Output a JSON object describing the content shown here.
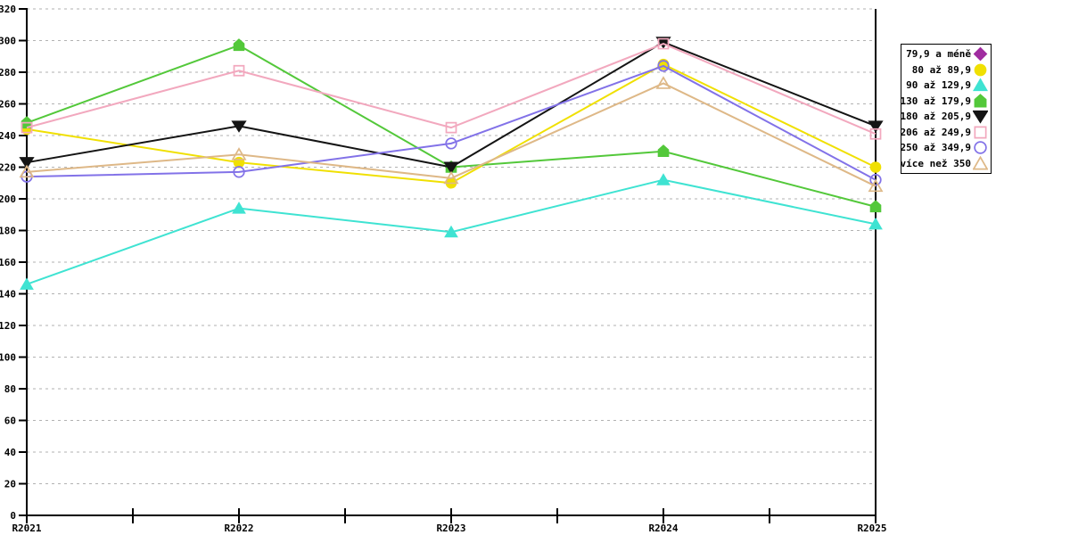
{
  "chart_data": {
    "type": "line",
    "title": "",
    "xlabel": "",
    "ylabel": "",
    "categories": [
      "R2021",
      "R2022",
      "R2023",
      "R2024",
      "R2025"
    ],
    "ylim": [
      0,
      320
    ],
    "ytick_step": 20,
    "grid": "dashed-horizontal",
    "grid_color": "#b2b2b2",
    "axis_color": "#000000",
    "background_color": "#ffffff",
    "legend_position": "right",
    "legend_border_color": "#000000",
    "series": [
      {
        "name": "79,9 a méně",
        "color": "#a02da0",
        "marker": "diamond",
        "marker_filled": true,
        "values": []
      },
      {
        "name": "80 až 89,9",
        "color": "#f0e002",
        "marker": "circle",
        "marker_filled": true,
        "values": [
          244,
          223,
          210,
          285,
          220
        ]
      },
      {
        "name": "90 až 129,9",
        "color": "#3fe3d2",
        "marker": "triangle-up",
        "marker_filled": true,
        "values": [
          146,
          194,
          179,
          212,
          184
        ]
      },
      {
        "name": "130 až 179,9",
        "color": "#53c83a",
        "marker": "pentagon",
        "marker_filled": true,
        "values": [
          248,
          297,
          220,
          230,
          195
        ]
      },
      {
        "name": "180 až 205,9",
        "color": "#141414",
        "marker": "triangle-down",
        "marker_filled": true,
        "values": [
          223,
          246,
          220,
          299,
          246
        ]
      },
      {
        "name": "206 až 249,9",
        "color": "#f2a8be",
        "marker": "square",
        "marker_filled": false,
        "values": [
          245,
          281,
          245,
          298,
          241
        ]
      },
      {
        "name": "250 až 349,9",
        "color": "#8272e8",
        "marker": "circle",
        "marker_filled": false,
        "values": [
          214,
          217,
          235,
          284,
          212
        ]
      },
      {
        "name": "více než 350",
        "color": "#deb887",
        "marker": "triangle-up",
        "marker_filled": false,
        "values": [
          217,
          228,
          213,
          273,
          208
        ]
      }
    ]
  }
}
